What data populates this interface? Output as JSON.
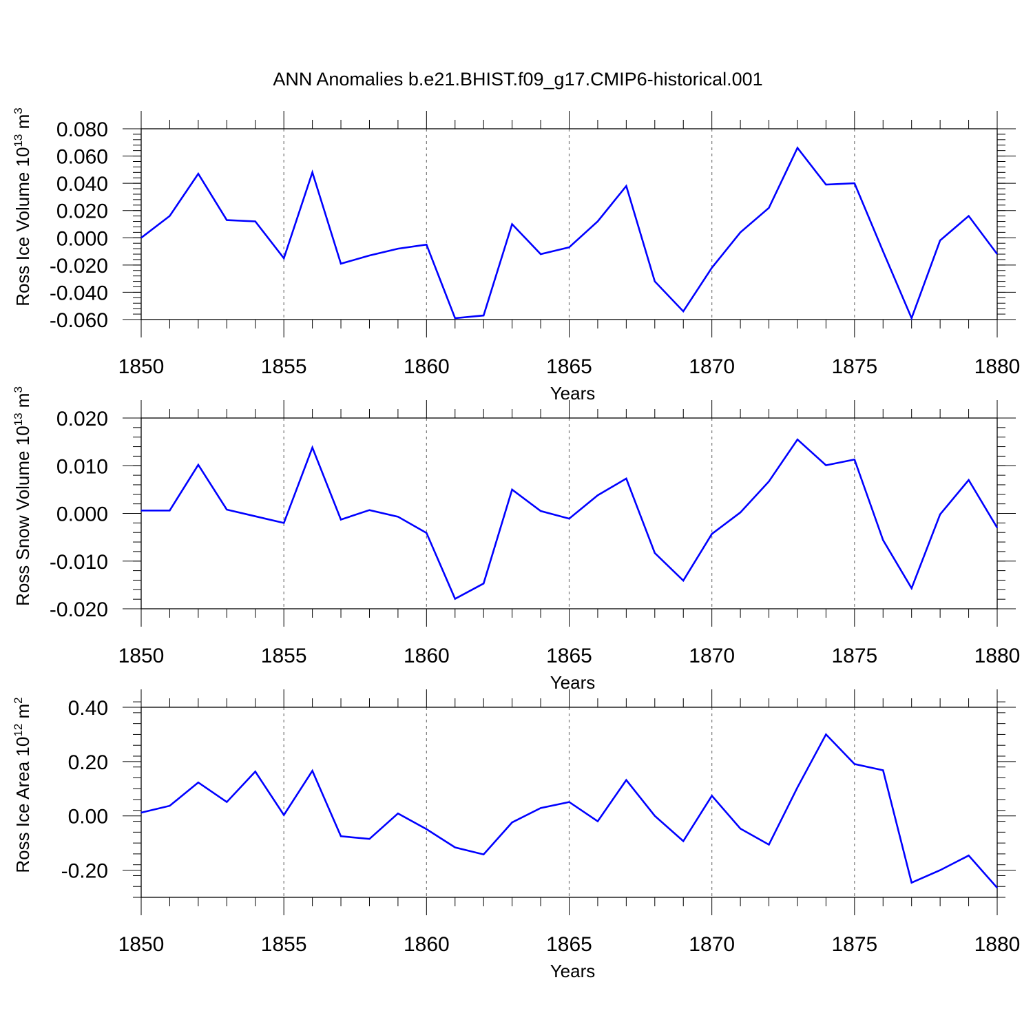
{
  "title": "ANN Anomalies b.e21.BHIST.f09_g17.CMIP6-historical.001",
  "colors": {
    "line": "#0000ff",
    "axis": "#000000",
    "grid": "#777777"
  },
  "chart_data": [
    {
      "type": "line",
      "xlabel": "Years",
      "ylabel_main": "Ross Ice Volume 10",
      "ylabel_exp1": "13",
      "ylabel_mid": " m",
      "ylabel_exp2": "3",
      "xlim": [
        1850,
        1880
      ],
      "ylim": [
        -0.06,
        0.08
      ],
      "xticks": [
        1850,
        1855,
        1860,
        1865,
        1870,
        1875,
        1880
      ],
      "xtick_labels": [
        "1850",
        "1855",
        "1860",
        "1865",
        "1870",
        "1875",
        "1880"
      ],
      "yticks": [
        0.08,
        0.06,
        0.04,
        0.02,
        0.0,
        -0.02,
        -0.04,
        -0.06
      ],
      "ytick_labels": [
        "0.080",
        "0.060",
        "0.040",
        "0.020",
        "0.000",
        "-0.020",
        "-0.040",
        "-0.060"
      ],
      "grid": "vertical dashed at major x ticks",
      "x": [
        1850,
        1851,
        1852,
        1853,
        1854,
        1855,
        1856,
        1857,
        1858,
        1859,
        1860,
        1861,
        1862,
        1863,
        1864,
        1865,
        1866,
        1867,
        1868,
        1869,
        1870,
        1871,
        1872,
        1873,
        1874,
        1875,
        1876,
        1877,
        1878,
        1879,
        1880
      ],
      "values": [
        0.0,
        0.016,
        0.047,
        0.013,
        0.012,
        -0.015,
        0.048,
        -0.019,
        -0.013,
        -0.008,
        -0.005,
        -0.059,
        -0.057,
        0.01,
        -0.012,
        -0.007,
        0.012,
        0.038,
        -0.032,
        -0.054,
        -0.022,
        0.004,
        0.022,
        0.066,
        0.039,
        0.04,
        -0.01,
        -0.059,
        -0.002,
        0.016,
        -0.012
      ]
    },
    {
      "type": "line",
      "xlabel": "Years",
      "ylabel_main": "Ross Snow Volume 10",
      "ylabel_exp1": "13",
      "ylabel_mid": " m",
      "ylabel_exp2": "3",
      "xlim": [
        1850,
        1880
      ],
      "ylim": [
        -0.02,
        0.02
      ],
      "xticks": [
        1850,
        1855,
        1860,
        1865,
        1870,
        1875,
        1880
      ],
      "xtick_labels": [
        "1850",
        "1855",
        "1860",
        "1865",
        "1870",
        "1875",
        "1880"
      ],
      "yticks": [
        0.02,
        0.01,
        0.0,
        -0.01,
        -0.02
      ],
      "ytick_labels": [
        "0.020",
        "0.010",
        "0.000",
        "-0.010",
        "-0.020"
      ],
      "grid": "vertical dashed at major x ticks",
      "x": [
        1850,
        1851,
        1852,
        1853,
        1854,
        1855,
        1856,
        1857,
        1858,
        1859,
        1860,
        1861,
        1862,
        1863,
        1864,
        1865,
        1866,
        1867,
        1868,
        1869,
        1870,
        1871,
        1872,
        1873,
        1874,
        1875,
        1876,
        1877,
        1878,
        1879,
        1880
      ],
      "values": [
        0.0006,
        0.0006,
        0.0102,
        0.0008,
        -0.0006,
        -0.002,
        0.0138,
        -0.0013,
        0.0007,
        -0.0007,
        -0.0041,
        -0.0179,
        -0.0147,
        0.005,
        0.0005,
        -0.0011,
        0.0038,
        0.0073,
        -0.0083,
        -0.0141,
        -0.0043,
        0.0002,
        0.0067,
        0.0155,
        0.0101,
        0.0113,
        -0.0056,
        -0.0157,
        -0.0002,
        0.007,
        -0.003
      ]
    },
    {
      "type": "line",
      "xlabel": "Years",
      "ylabel_main": "Ross Ice Area 10",
      "ylabel_exp1": "12",
      "ylabel_mid": " m",
      "ylabel_exp2": "2",
      "xlim": [
        1850,
        1880
      ],
      "ylim": [
        -0.3,
        0.4
      ],
      "xticks": [
        1850,
        1855,
        1860,
        1865,
        1870,
        1875,
        1880
      ],
      "xtick_labels": [
        "1850",
        "1855",
        "1860",
        "1865",
        "1870",
        "1875",
        "1880"
      ],
      "yticks": [
        0.4,
        0.2,
        0.0,
        -0.2
      ],
      "ytick_labels": [
        "0.40",
        "0.20",
        "0.00",
        "-0.20"
      ],
      "grid": "vertical dashed at major x ticks",
      "x": [
        1850,
        1851,
        1852,
        1853,
        1854,
        1855,
        1856,
        1857,
        1858,
        1859,
        1860,
        1861,
        1862,
        1863,
        1864,
        1865,
        1866,
        1867,
        1868,
        1869,
        1870,
        1871,
        1872,
        1873,
        1874,
        1875,
        1876,
        1877,
        1878,
        1879,
        1880
      ],
      "values": [
        0.012,
        0.037,
        0.123,
        0.051,
        0.163,
        0.003,
        0.166,
        -0.075,
        -0.085,
        0.009,
        -0.049,
        -0.116,
        -0.142,
        -0.024,
        0.029,
        0.051,
        -0.02,
        0.132,
        0.0,
        -0.093,
        0.074,
        -0.047,
        -0.106,
        0.105,
        0.3,
        0.191,
        0.168,
        -0.246,
        -0.2,
        -0.146,
        -0.265
      ]
    }
  ]
}
